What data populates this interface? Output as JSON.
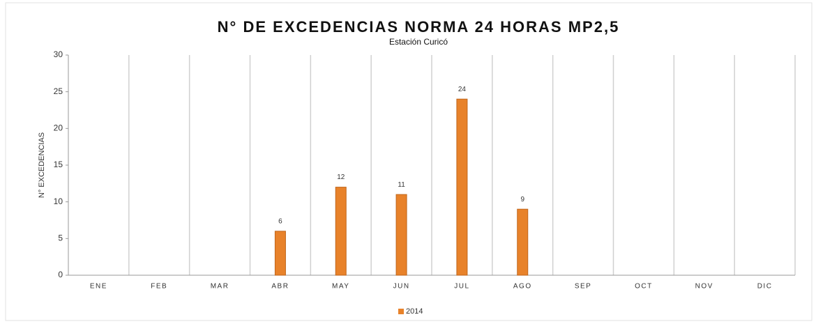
{
  "chart_data": {
    "type": "bar",
    "title": "N° DE EXCEDENCIAS NORMA 24 HORAS MP2,5",
    "subtitle": "Estación Curicó",
    "y_label": "N° EXCEDENCIAS",
    "categories": [
      "ENE",
      "FEB",
      "MAR",
      "ABR",
      "MAY",
      "JUN",
      "JUL",
      "AGO",
      "SEP",
      "OCT",
      "NOV",
      "DIC"
    ],
    "series": [
      {
        "name": "2014",
        "color": "#e8822a",
        "values": [
          null,
          null,
          null,
          6,
          12,
          11,
          24,
          9,
          null,
          null,
          null,
          null
        ]
      }
    ],
    "ylim": [
      0,
      30
    ],
    "yticks": [
      0,
      5,
      10,
      15,
      20,
      25,
      30
    ],
    "legend": "bottom"
  }
}
